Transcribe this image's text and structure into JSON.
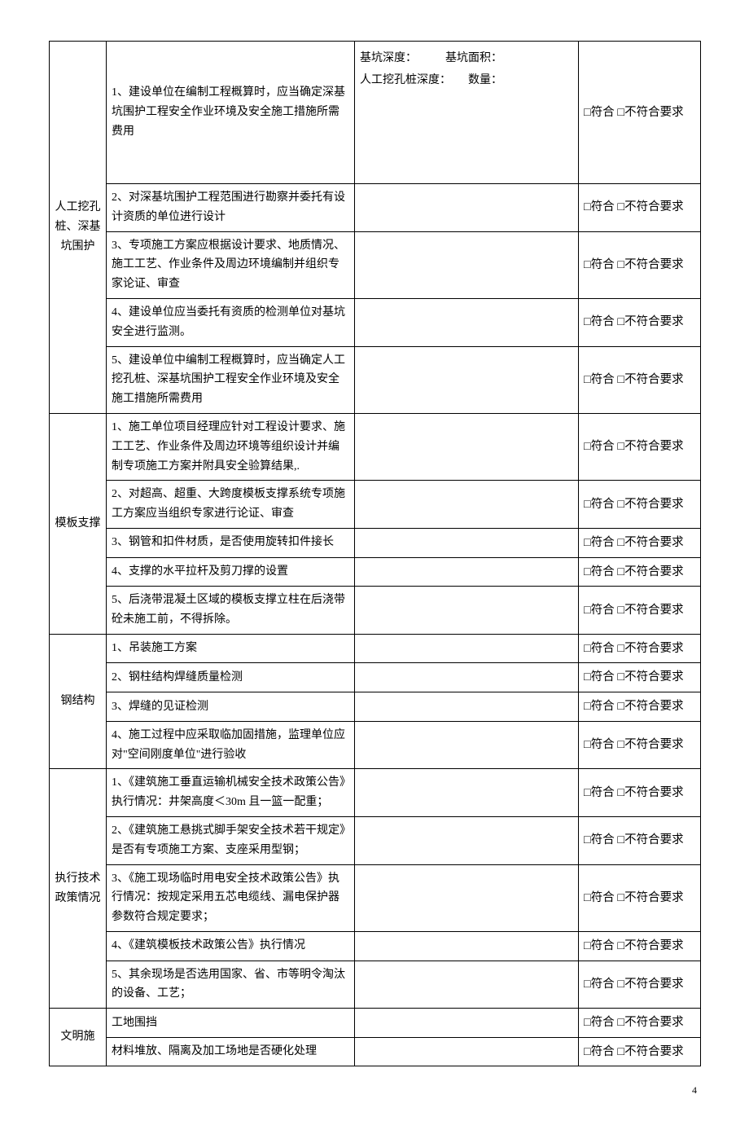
{
  "meta_labels": {
    "pit_depth": "基坑深度：",
    "pit_area": "基坑面积：",
    "pile_depth": "人工挖孔桩深度：",
    "qty": "数量："
  },
  "result_label": "□符合 □不符合要求",
  "sections": [
    {
      "category": "人工挖孔桩、深基坑围护",
      "rows": [
        {
          "desc": "1、建设单位在编制工程概算时，应当确定深基坑围护工程安全作业环境及安全施工措施所需费用",
          "meta_first": true,
          "tall": true
        },
        {
          "desc": "2、对深基坑围护工程范围进行勘察并委托有设计资质的单位进行设计"
        },
        {
          "desc": "3、专项施工方案应根据设计要求、地质情况、施工工艺、作业条件及周边环境编制并组织专家论证、审查"
        },
        {
          "desc": "4、建设单位应当委托有资质的检测单位对基坑安全进行监测。"
        },
        {
          "desc": "5、建设单位中编制工程概算时，应当确定人工挖孔桩、深基坑围护工程安全作业环境及安全施工措施所需费用"
        }
      ]
    },
    {
      "category": "模板支撑",
      "rows": [
        {
          "desc": "1、施工单位项目经理应针对工程设计要求、施工工艺、作业条件及周边环境等组织设计并编制专项施工方案并附具安全验算结果,."
        },
        {
          "desc": "2、对超高、超重、大跨度模板支撑系统专项施工方案应当组织专家进行论证、审查"
        },
        {
          "desc": "3、钢管和扣件材质，是否使用旋转扣件接长"
        },
        {
          "desc": "4、支撑的水平拉杆及剪刀撑的设置"
        },
        {
          "desc": "5、后浇带混凝土区域的模板支撑立柱在后浇带砼未施工前，不得拆除。"
        }
      ]
    },
    {
      "category": "钢结构",
      "rows": [
        {
          "desc": "1、吊装施工方案"
        },
        {
          "desc": "2、钢柱结构焊缝质量检测"
        },
        {
          "desc": "3、焊缝的见证检测"
        },
        {
          "desc": "4、施工过程中应采取临加固措施，监理单位应对\"空间刚度单位\"进行验收"
        }
      ]
    },
    {
      "category": "执行技术政策情况",
      "rows": [
        {
          "desc": "1、《建筑施工垂直运输机械安全技术政策公告》执行情况：井架高度＜30m 且一篮一配重；"
        },
        {
          "desc": "2、《建筑施工悬挑式脚手架安全技术若干规定》是否有专项施工方案、支座采用型钢；"
        },
        {
          "desc": "3、《施工现场临时用电安全技术政策公告》执行情况：按规定采用五芯电缆线、漏电保护器参数符合规定要求；"
        },
        {
          "desc": "4、《建筑模板技术政策公告》执行情况"
        },
        {
          "desc": "5、其余现场是否选用国家、省、市等明令淘汰的设备、工艺；"
        }
      ]
    },
    {
      "category": "文明施",
      "rows": [
        {
          "desc": "工地围挡"
        },
        {
          "desc": "材料堆放、隔离及加工场地是否硬化处理"
        }
      ]
    }
  ],
  "page_number": "4"
}
